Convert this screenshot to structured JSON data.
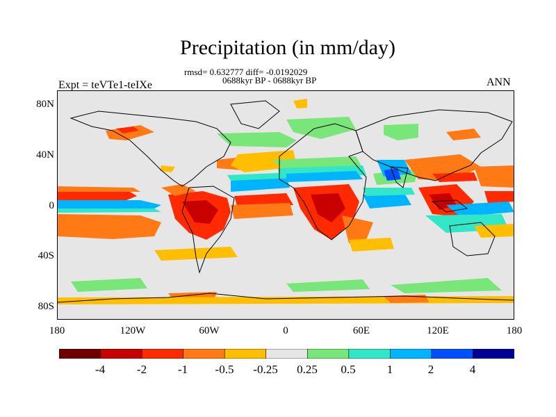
{
  "title": "Precipitation (in mm/day)",
  "stats_line": "rmsd= 0.632777 diff= -0.0192029",
  "period_line": "0688kyr BP - 0688kyr BP",
  "experiment_label": "Expt = teVTe1-teIXe",
  "season_label": "ANN",
  "map": {
    "projection": "cylindrical-equidistant",
    "background_color": "#e6e6e6",
    "lat_ticks": [
      "80N",
      "40N",
      "0",
      "40S",
      "80S"
    ],
    "lon_ticks": [
      "180",
      "120W",
      "60W",
      "0",
      "60E",
      "120E",
      "180"
    ]
  },
  "colorbar": {
    "colors": [
      "#6e0000",
      "#c80000",
      "#ff2a00",
      "#ff7a14",
      "#ffbe00",
      "#e6e6e6",
      "#78e678",
      "#32e6c8",
      "#00b4ff",
      "#0050ff",
      "#000096"
    ],
    "labels": [
      "-4",
      "-2",
      "-1",
      "-0.5",
      "-0.25",
      "0.25",
      "0.5",
      "1",
      "2",
      "4"
    ]
  }
}
